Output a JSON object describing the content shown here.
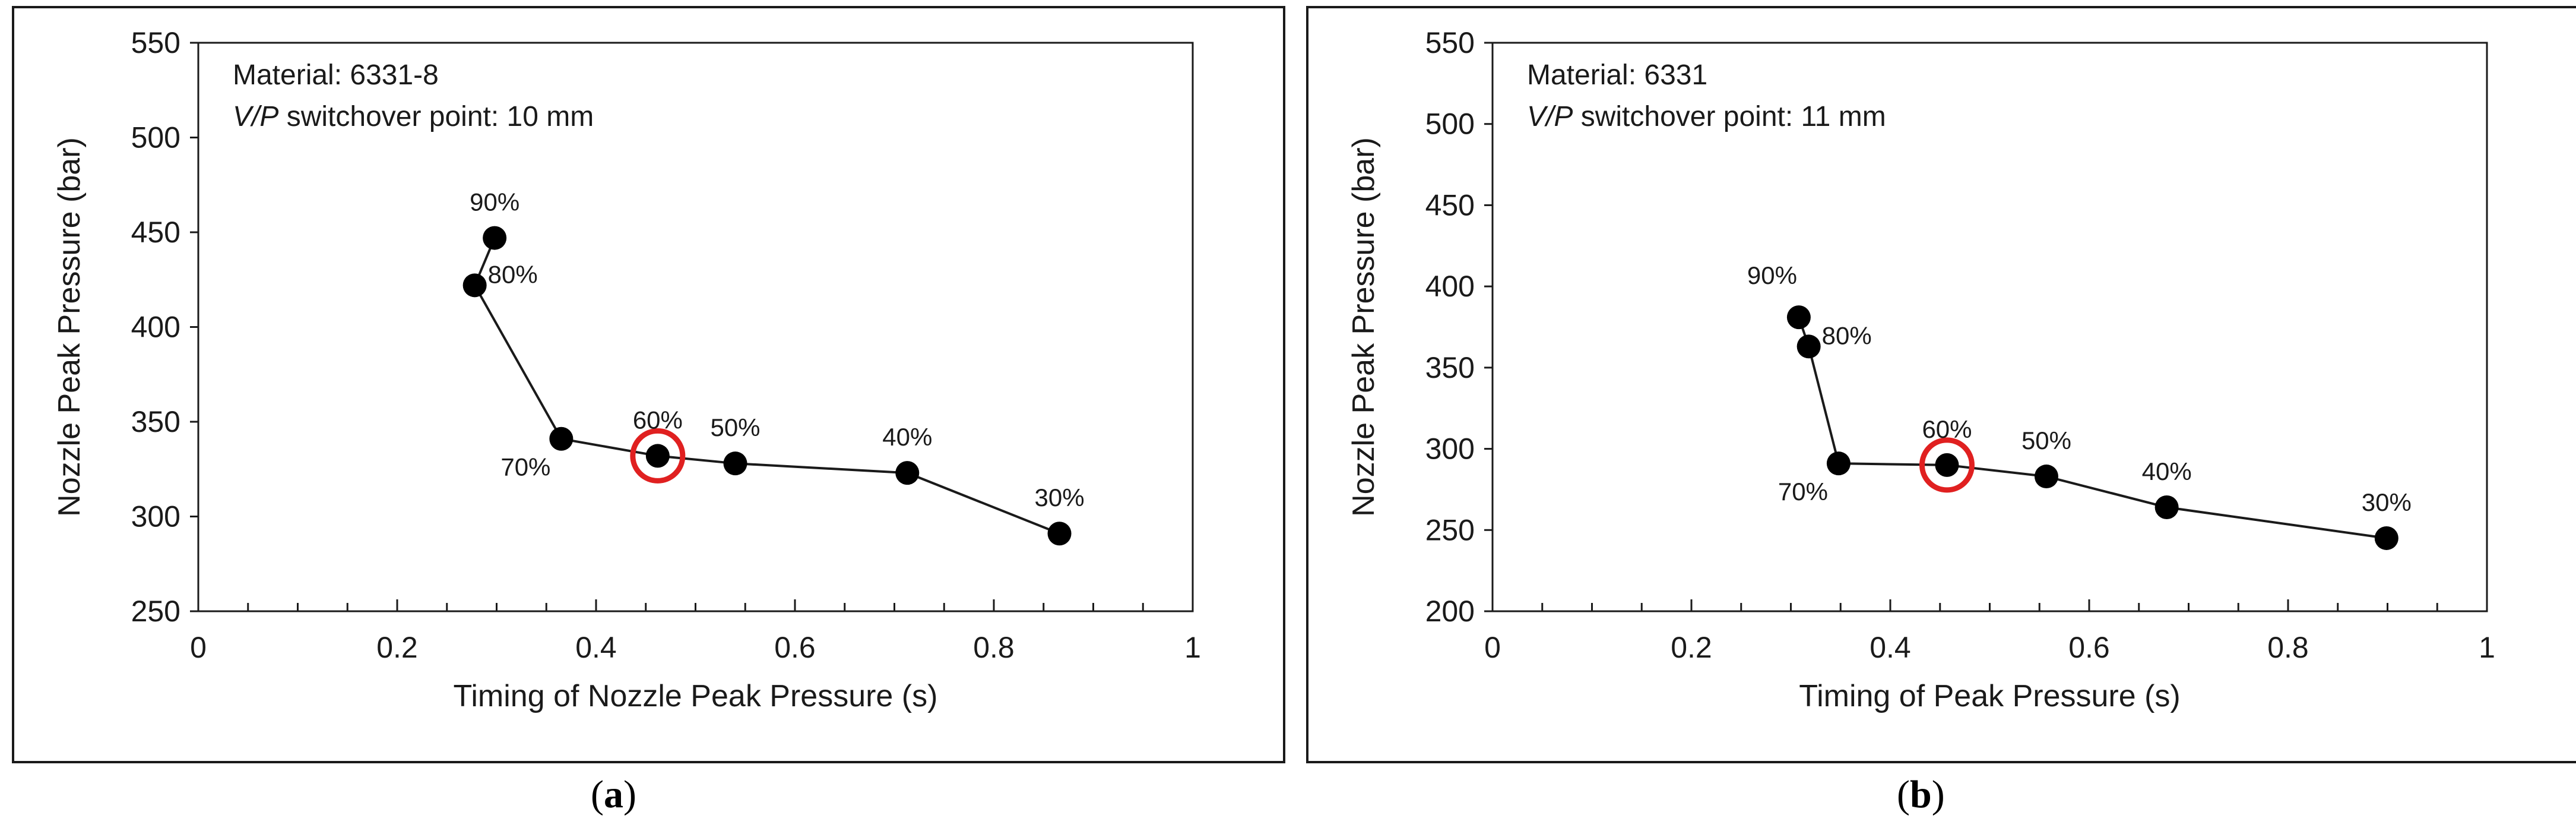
{
  "chart_data": [
    {
      "type": "scatter",
      "panel": "a",
      "title": "",
      "xlabel": "Timing of Nozzle Peak Pressure (s)",
      "ylabel": "Nozzle Peak Pressure (bar)",
      "xlim": [
        0,
        1
      ],
      "ylim": [
        250,
        550
      ],
      "xticks": [
        0,
        0.2,
        0.4,
        0.6,
        0.8,
        1
      ],
      "xtick_labels": [
        "0",
        "0.2",
        "0.4",
        "0.6",
        "0.8",
        "1"
      ],
      "yticks": [
        250,
        300,
        350,
        400,
        450,
        500,
        550
      ],
      "ytick_labels": [
        "250",
        "300",
        "350",
        "400",
        "450",
        "500",
        "550"
      ],
      "grid": false,
      "annotation": {
        "material_label": "Material: 6331-8",
        "vp_italic": "V/P",
        "vp_rest": " switchover point: 10 mm"
      },
      "points": [
        {
          "label": "90%",
          "x": 0.298,
          "y": 447,
          "label_pos": "above"
        },
        {
          "label": "80%",
          "x": 0.278,
          "y": 422,
          "label_pos": "right-up"
        },
        {
          "label": "70%",
          "x": 0.365,
          "y": 341,
          "label_pos": "below-left"
        },
        {
          "label": "60%",
          "x": 0.462,
          "y": 332,
          "label_pos": "above",
          "highlighted": true
        },
        {
          "label": "50%",
          "x": 0.54,
          "y": 328,
          "label_pos": "above"
        },
        {
          "label": "40%",
          "x": 0.713,
          "y": 323,
          "label_pos": "above"
        },
        {
          "label": "30%",
          "x": 0.866,
          "y": 291,
          "label_pos": "above"
        }
      ],
      "line_order": [
        "90%",
        "80%",
        "70%",
        "60%",
        "50%",
        "40%",
        "30%"
      ],
      "highlight_color": "#e02020"
    },
    {
      "type": "scatter",
      "panel": "b",
      "title": "",
      "xlabel": "Timing of Peak Pressure (s)",
      "ylabel": "Nozzle Peak Pressure (bar)",
      "xlim": [
        0,
        1
      ],
      "ylim": [
        200,
        550
      ],
      "xticks": [
        0,
        0.2,
        0.4,
        0.6,
        0.8,
        1
      ],
      "xtick_labels": [
        "0",
        "0.2",
        "0.4",
        "0.6",
        "0.8",
        "1"
      ],
      "yticks": [
        200,
        250,
        300,
        350,
        400,
        450,
        500,
        550
      ],
      "ytick_labels": [
        "200",
        "250",
        "300",
        "350",
        "400",
        "450",
        "500",
        "550"
      ],
      "grid": false,
      "annotation": {
        "material_label": "Material: 6331",
        "vp_italic": "V/P",
        "vp_rest": " switchover point: 11 mm"
      },
      "points": [
        {
          "label": "90%",
          "x": 0.308,
          "y": 381,
          "label_pos": "above-left"
        },
        {
          "label": "80%",
          "x": 0.318,
          "y": 363,
          "label_pos": "right-up"
        },
        {
          "label": "70%",
          "x": 0.348,
          "y": 291,
          "label_pos": "below-left"
        },
        {
          "label": "60%",
          "x": 0.457,
          "y": 290,
          "label_pos": "above",
          "highlighted": true
        },
        {
          "label": "50%",
          "x": 0.557,
          "y": 283,
          "label_pos": "above"
        },
        {
          "label": "40%",
          "x": 0.678,
          "y": 264,
          "label_pos": "above"
        },
        {
          "label": "30%",
          "x": 0.899,
          "y": 245,
          "label_pos": "above"
        }
      ],
      "line_order": [
        "90%",
        "80%",
        "70%",
        "60%",
        "50%",
        "40%",
        "30%"
      ],
      "highlight_color": "#e02020"
    }
  ],
  "captions": {
    "a": {
      "open": "(",
      "letter": "a",
      "close": ")"
    },
    "b": {
      "open": "(",
      "letter": "b",
      "close": ")"
    }
  }
}
